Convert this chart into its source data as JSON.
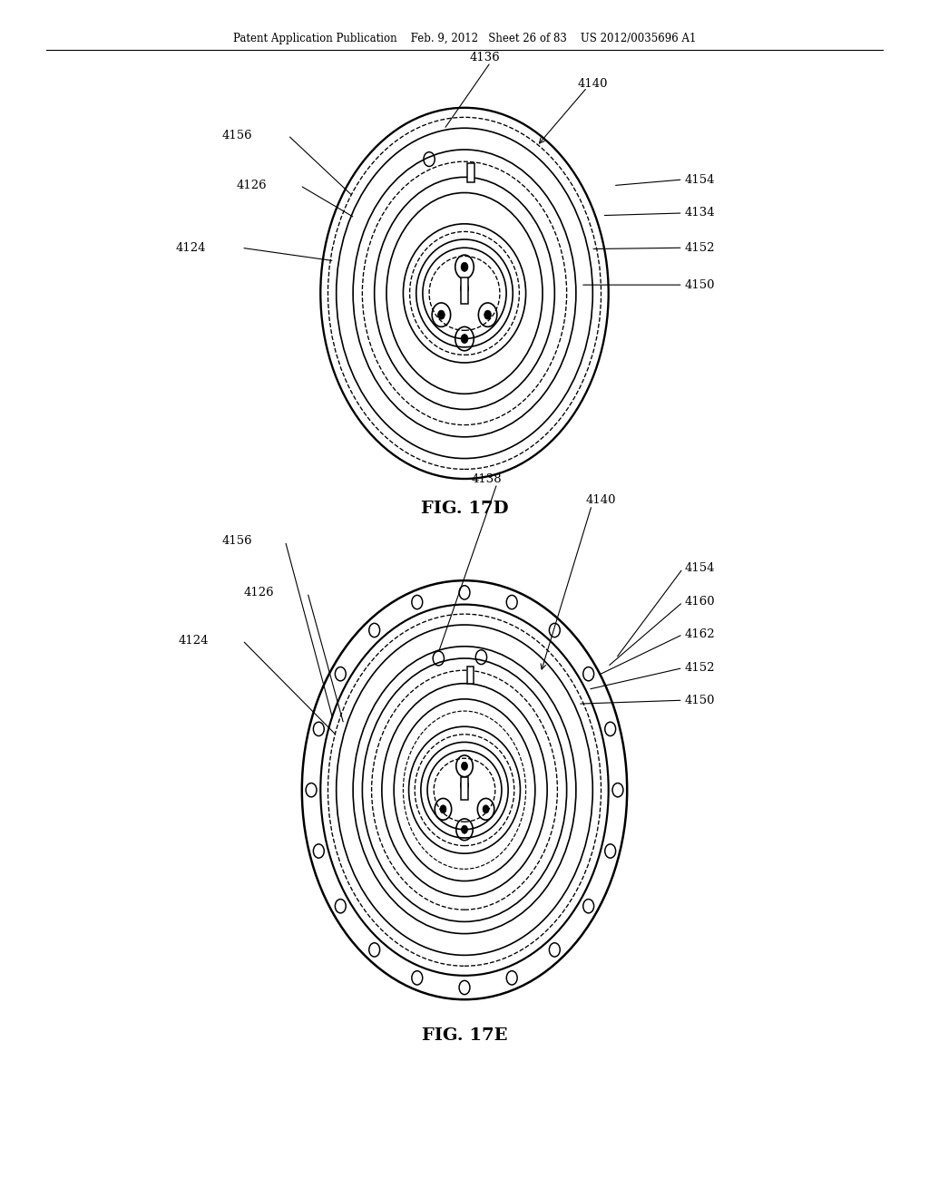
{
  "bg_color": "#ffffff",
  "line_color": "#000000",
  "header_text": "Patent Application Publication    Feb. 9, 2012   Sheet 26 of 83    US 2012/0035696 A1",
  "fig17d_label": "FIG. 17D",
  "fig17e_label": "FIG. 17E"
}
